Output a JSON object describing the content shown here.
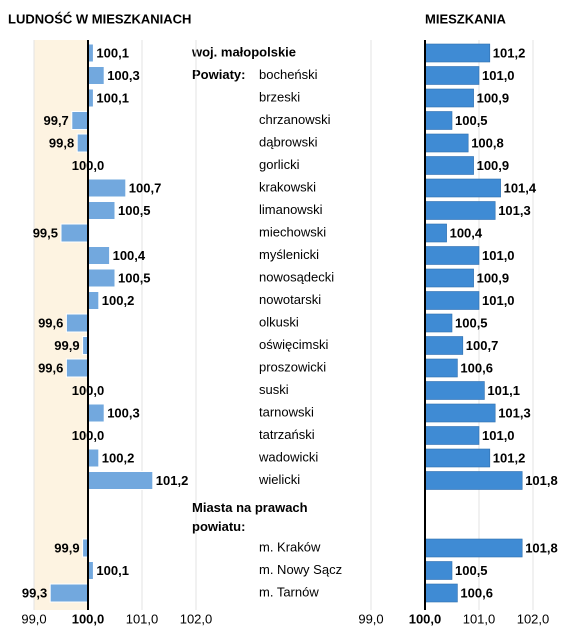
{
  "chart_data": {
    "type": "bar",
    "orientation": "horizontal",
    "baseline": 100,
    "category_group_label": "Powiaty:",
    "categories": [
      "woj. małopolskie",
      "bocheński",
      "brzeski",
      "chrzanowski",
      "dąbrowski",
      "gorlicki",
      "krakowski",
      "limanowski",
      "miechowski",
      "myślenicki",
      "nowosądecki",
      "nowotarski",
      "olkuski",
      "oświęcimski",
      "proszowicki",
      "suski",
      "tarnowski",
      "tatrzański",
      "wadowicki",
      "wielicki",
      "Miasta na prawach powiatu:",
      "m. Kraków",
      "m. Nowy Sącz",
      "m. Tarnów"
    ],
    "series": [
      {
        "name": "LUDNOŚĆ W MIESZKANIACH",
        "color": "#72a8de",
        "shade": [
          99,
          100
        ],
        "shade_color": "#fdf3e1",
        "values": [
          100.1,
          100.3,
          100.1,
          99.7,
          99.8,
          100.0,
          100.7,
          100.5,
          99.5,
          100.4,
          100.5,
          100.2,
          99.6,
          99.9,
          99.6,
          100.0,
          100.3,
          100.0,
          100.2,
          101.2,
          null,
          99.9,
          100.1,
          99.3
        ],
        "value_labels": [
          "100,1",
          "100,3",
          "100,1",
          "99,7",
          "99,8",
          "100,0",
          "100,7",
          "100,5",
          "99,5",
          "100,4",
          "100,5",
          "100,2",
          "99,6",
          "99,9",
          "99,6",
          "100,0",
          "100,3",
          "100,0",
          "100,2",
          "101,2",
          null,
          "99,9",
          "100,1",
          "99,3"
        ],
        "xlim": [
          99,
          102
        ],
        "xticks": [
          {
            "value": 99,
            "label": "99,0"
          },
          {
            "value": 100,
            "label": "100,0"
          },
          {
            "value": 101,
            "label": "101,0"
          },
          {
            "value": 102,
            "label": "102,0"
          }
        ]
      },
      {
        "name": "MIESZKANIA",
        "color": "#3f8bd4",
        "values": [
          101.2,
          101.0,
          100.9,
          100.5,
          100.8,
          100.9,
          101.4,
          101.3,
          100.4,
          101.0,
          100.9,
          101.0,
          100.5,
          100.7,
          100.6,
          101.1,
          101.3,
          101.0,
          101.2,
          101.8,
          null,
          101.8,
          100.5,
          100.6
        ],
        "value_labels": [
          "101,2",
          "101,0",
          "100,9",
          "100,5",
          "100,8",
          "100,9",
          "101,4",
          "101,3",
          "100,4",
          "101,0",
          "100,9",
          "101,0",
          "100,5",
          "100,7",
          "100,6",
          "101,1",
          "101,3",
          "101,0",
          "101,2",
          "101,8",
          null,
          "101,8",
          "100,5",
          "100,6"
        ],
        "xlim": [
          99,
          102
        ],
        "xticks": [
          {
            "value": 99,
            "label": "99,0"
          },
          {
            "value": 100,
            "label": "100,0"
          },
          {
            "value": 101,
            "label": "101,0"
          },
          {
            "value": 102,
            "label": "102,0"
          }
        ]
      }
    ]
  }
}
